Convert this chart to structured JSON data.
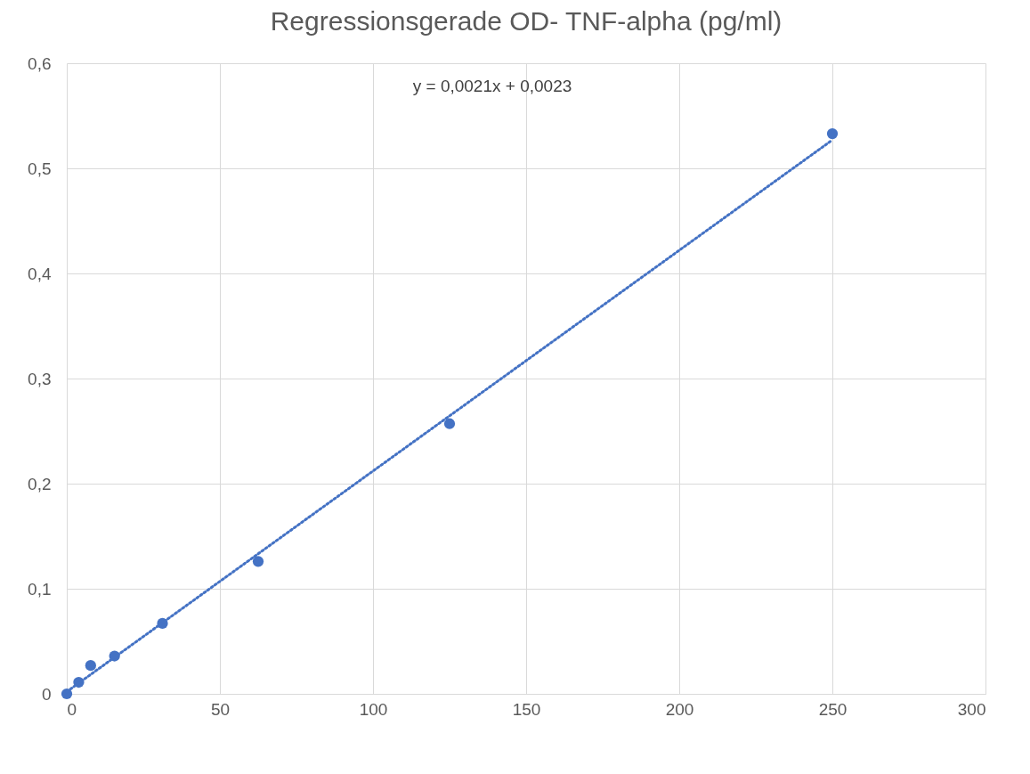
{
  "chart_data": {
    "type": "scatter",
    "title": "Regressionsgerade OD- TNF-alpha (pg/ml)",
    "x": [
      0,
      3.9,
      7.8,
      15.6,
      31.25,
      62.5,
      125,
      250
    ],
    "series": [
      {
        "color": "#4472c4",
        "marker": "circle",
        "values": [
          0,
          0.011,
          0.027,
          0.036,
          0.067,
          0.126,
          0.257,
          0.533
        ]
      },
      {
        "type": "line",
        "color": "#4472c4",
        "line_style": "dotted",
        "marker": "none",
        "x": [
          0,
          250
        ],
        "values": [
          0.002,
          0.527
        ]
      }
    ],
    "xlim": [
      0,
      300
    ],
    "xticks": [
      0,
      50,
      100,
      150,
      200,
      250,
      300
    ],
    "ylim": [
      0,
      0.6
    ],
    "yticks": [
      {
        "value": 0,
        "label": "0"
      },
      {
        "value": 0.1,
        "label": "0,1"
      },
      {
        "value": 0.2,
        "label": "0,2"
      },
      {
        "value": 0.3,
        "label": "0,3"
      },
      {
        "value": 0.4,
        "label": "0,4"
      },
      {
        "value": 0.5,
        "label": "0,5"
      },
      {
        "value": 0.6,
        "label": "0,6"
      }
    ],
    "grid": true,
    "annotations": [
      "y = 0,0021x + 0,0023"
    ]
  }
}
